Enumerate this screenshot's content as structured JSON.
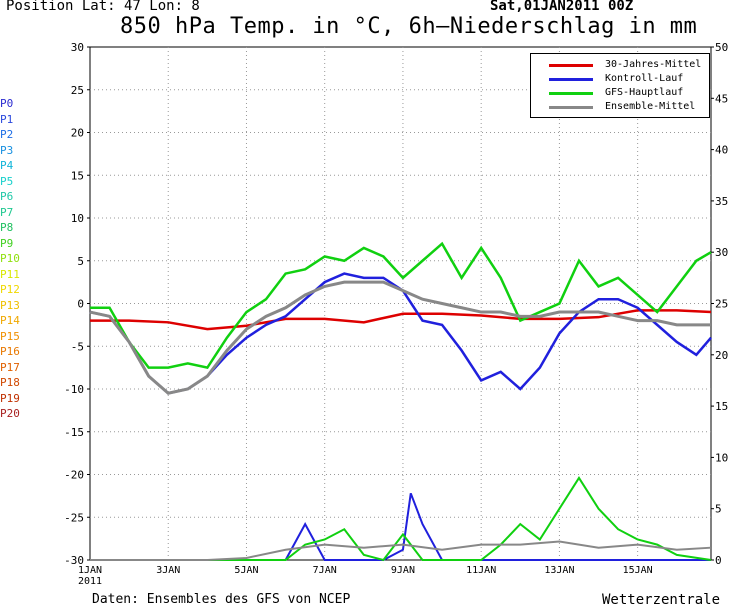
{
  "header": {
    "position": "Position   Lat: 47 Lon: 8",
    "datetime": "Sat,01JAN2011 00Z",
    "title": "850 hPa Temp. in °C, 6h–Niederschlag in mm"
  },
  "footer": {
    "source": "Daten: Ensembles des GFS von NCEP",
    "credit": "Wetterzentrale"
  },
  "members": [
    {
      "label": "P0",
      "color": "#2a2ad0"
    },
    {
      "label": "P1",
      "color": "#2a48dc"
    },
    {
      "label": "P2",
      "color": "#1e6ee6"
    },
    {
      "label": "P3",
      "color": "#1890e0"
    },
    {
      "label": "P4",
      "color": "#10b4d8"
    },
    {
      "label": "P5",
      "color": "#18d0cc"
    },
    {
      "label": "P6",
      "color": "#20c8a8"
    },
    {
      "label": "P7",
      "color": "#20c890"
    },
    {
      "label": "P8",
      "color": "#20c060"
    },
    {
      "label": "P9",
      "color": "#40d020"
    },
    {
      "label": "P10",
      "color": "#90e010"
    },
    {
      "label": "P11",
      "color": "#d8e800"
    },
    {
      "label": "P12",
      "color": "#f0d800"
    },
    {
      "label": "P13",
      "color": "#f0c000"
    },
    {
      "label": "P14",
      "color": "#f0a800"
    },
    {
      "label": "P15",
      "color": "#f09000"
    },
    {
      "label": "P16",
      "color": "#e87800"
    },
    {
      "label": "P17",
      "color": "#e06000"
    },
    {
      "label": "P18",
      "color": "#d04800"
    },
    {
      "label": "P19",
      "color": "#c03000"
    },
    {
      "label": "P20",
      "color": "#a82020"
    }
  ],
  "chart_data": {
    "type": "line",
    "xlabel": "",
    "ylabel": "",
    "x_tick_labels": [
      "1JAN\n2011",
      "3JAN",
      "5JAN",
      "7JAN",
      "9JAN",
      "11JAN",
      "13JAN",
      "15JAN"
    ],
    "x_tick_days": [
      1,
      3,
      5,
      7,
      9,
      11,
      13,
      15
    ],
    "xlim_days": [
      1,
      16.875
    ],
    "y_left_lim": [
      -30,
      30
    ],
    "y_left_ticks": [
      30,
      25,
      20,
      15,
      10,
      5,
      0,
      -5,
      -10,
      -15,
      -20,
      -25,
      -30
    ],
    "y_right_lim": [
      0,
      50
    ],
    "y_right_ticks": [
      50,
      45,
      40,
      35,
      30,
      25,
      20,
      15,
      10,
      5,
      0
    ],
    "grid": true,
    "legend_position": "top-right",
    "legend": [
      {
        "name": "30-Jahres-Mittel",
        "color": "#dd0000"
      },
      {
        "name": "Kontroll-Lauf",
        "color": "#2020dd"
      },
      {
        "name": "GFS-Hauptlauf",
        "color": "#10d010"
      },
      {
        "name": "Ensemble-Mittel",
        "color": "#888888"
      }
    ],
    "temperature_series": [
      {
        "name": "30-Jahres-Mittel",
        "color": "#dd0000",
        "x": [
          1,
          2,
          3,
          4,
          5,
          6,
          7,
          8,
          9,
          10,
          11,
          12,
          13,
          14,
          15,
          16,
          16.875
        ],
        "y": [
          -2,
          -2,
          -2.2,
          -3,
          -2.6,
          -1.8,
          -1.8,
          -2.2,
          -1.2,
          -1.2,
          -1.4,
          -1.8,
          -1.8,
          -1.6,
          -0.8,
          -0.8,
          -1
        ]
      },
      {
        "name": "Kontroll-Lauf",
        "color": "#2020dd",
        "x": [
          1,
          1.5,
          2,
          2.5,
          3,
          3.5,
          4,
          4.5,
          5,
          5.5,
          6,
          6.5,
          7,
          7.5,
          8,
          8.5,
          9,
          9.5,
          10,
          10.5,
          11,
          11.5,
          12,
          12.5,
          13,
          13.5,
          14,
          14.5,
          15,
          15.5,
          16,
          16.5,
          16.875
        ],
        "y": [
          -1,
          -1.5,
          -4.5,
          -8.5,
          -10.5,
          -10,
          -8.5,
          -6,
          -4,
          -2.5,
          -1.5,
          0.5,
          2.5,
          3.5,
          3,
          3,
          1.5,
          -2,
          -2.5,
          -5.5,
          -9,
          -8,
          -10,
          -7.5,
          -3.5,
          -1,
          0.5,
          0.5,
          -0.5,
          -2.5,
          -4.5,
          -6,
          -4
        ]
      },
      {
        "name": "GFS-Hauptlauf",
        "color": "#10d010",
        "x": [
          1,
          1.5,
          2,
          2.5,
          3,
          3.5,
          4,
          4.5,
          5,
          5.5,
          6,
          6.5,
          7,
          7.5,
          8,
          8.5,
          9,
          9.5,
          10,
          10.5,
          11,
          11.5,
          12,
          12.5,
          13,
          13.5,
          14,
          14.5,
          15,
          15.5,
          16,
          16.5,
          16.875
        ],
        "y": [
          -0.5,
          -0.5,
          -4.5,
          -7.5,
          -7.5,
          -7,
          -7.5,
          -4,
          -1,
          0.5,
          3.5,
          4,
          5.5,
          5,
          6.5,
          5.5,
          3,
          5,
          7,
          3,
          6.5,
          3,
          -2,
          -1,
          0,
          5,
          2,
          3,
          1,
          -1,
          2,
          5,
          6
        ]
      },
      {
        "name": "Ensemble-Mittel",
        "color": "#888888",
        "x": [
          1,
          1.5,
          2,
          2.5,
          3,
          3.5,
          4,
          4.5,
          5,
          5.5,
          6,
          6.5,
          7,
          7.5,
          8,
          8.5,
          9,
          9.5,
          10,
          10.5,
          11,
          11.5,
          12,
          12.5,
          13,
          13.5,
          14,
          14.5,
          15,
          15.5,
          16,
          16.5,
          16.875
        ],
        "y": [
          -1,
          -1.5,
          -4.5,
          -8.5,
          -10.5,
          -10,
          -8.5,
          -5.5,
          -3,
          -1.5,
          -0.5,
          1,
          2,
          2.5,
          2.5,
          2.5,
          1.5,
          0.5,
          0,
          -0.5,
          -1,
          -1,
          -1.5,
          -1.5,
          -1,
          -1,
          -1,
          -1.5,
          -2,
          -2,
          -2.5,
          -2.5,
          -2.5
        ]
      }
    ],
    "precipitation_series": [
      {
        "name": "Kontroll-Lauf",
        "color": "#2020dd",
        "x": [
          1,
          6,
          6.5,
          7,
          7.5,
          8,
          8.5,
          9,
          9.2,
          9.5,
          10,
          10.5,
          11,
          11.5,
          12,
          13,
          14,
          15,
          16,
          16.875
        ],
        "y": [
          0,
          0,
          3.5,
          0,
          0,
          0,
          0,
          1,
          6.5,
          3.5,
          0,
          0,
          0,
          0,
          0,
          0,
          0,
          0,
          0,
          0
        ]
      },
      {
        "name": "GFS-Hauptlauf",
        "color": "#10d010",
        "x": [
          1,
          5,
          6,
          6.5,
          7,
          7.5,
          8,
          8.5,
          9,
          9.5,
          10,
          10.5,
          11,
          11.5,
          12,
          12.5,
          13,
          13.5,
          14,
          14.5,
          15,
          15.5,
          16,
          16.875
        ],
        "y": [
          0,
          0,
          0,
          1.5,
          2,
          3,
          0.5,
          0,
          2.5,
          0,
          0,
          0,
          0,
          1.5,
          3.5,
          2,
          5,
          8,
          5,
          3,
          2,
          1.5,
          0.5,
          0
        ]
      },
      {
        "name": "Ensemble-Mittel",
        "color": "#888888",
        "x": [
          1,
          2,
          3,
          4,
          5,
          6,
          7,
          8,
          9,
          10,
          11,
          12,
          13,
          14,
          15,
          16,
          16.875
        ],
        "y": [
          0,
          0,
          0,
          0,
          0.2,
          1,
          1.5,
          1.2,
          1.5,
          1,
          1.5,
          1.5,
          1.8,
          1.2,
          1.5,
          1,
          1.2
        ]
      }
    ],
    "ensemble_spread_note": ""
  }
}
